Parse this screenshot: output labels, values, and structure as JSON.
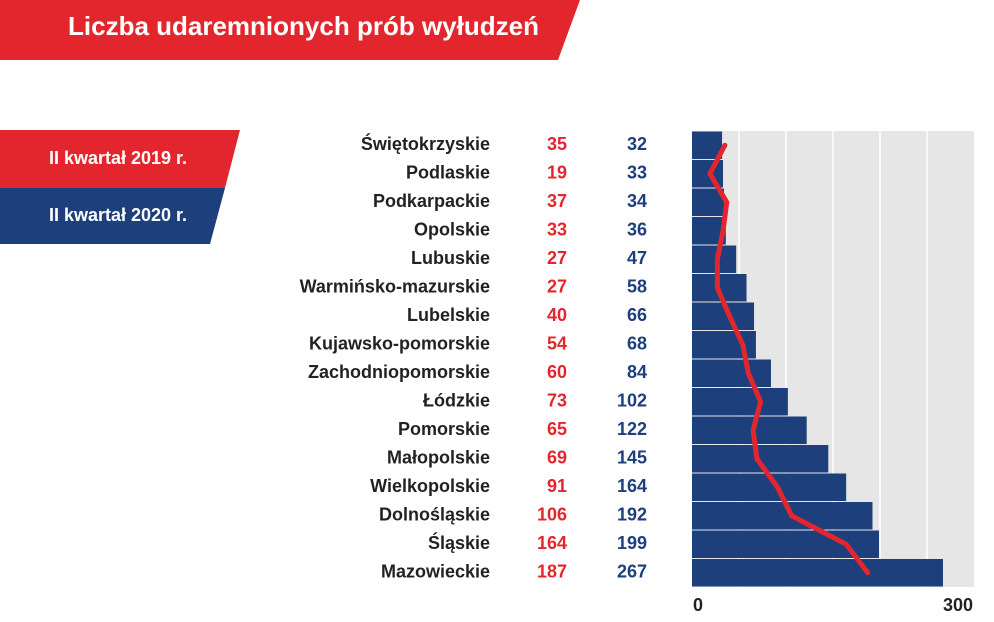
{
  "chart_data": {
    "type": "bar",
    "title": "Liczba udaremnionych prób wyłudzeń",
    "categories": [
      "Świętokrzyskie",
      "Podlaskie",
      "Podkarpackie",
      "Opolskie",
      "Lubuskie",
      "Warmińsko-mazurskie",
      "Lubelskie",
      "Kujawsko-pomorskie",
      "Zachodniopomorskie",
      "Łódzkie",
      "Pomorskie",
      "Małopolskie",
      "Wielkopolskie",
      "Dolnośląskie",
      "Śląskie",
      "Mazowieckie"
    ],
    "series": [
      {
        "name": "II kwartał 2019 r.",
        "color": "#e3262d",
        "type": "line",
        "values": [
          35,
          19,
          37,
          33,
          27,
          27,
          40,
          54,
          60,
          73,
          65,
          69,
          91,
          106,
          164,
          187
        ]
      },
      {
        "name": "II kwartał 2020 r.",
        "color": "#1d3f7c",
        "type": "bar",
        "values": [
          32,
          33,
          34,
          36,
          47,
          58,
          66,
          68,
          84,
          102,
          122,
          145,
          164,
          192,
          199,
          267
        ]
      }
    ],
    "xlim": [
      0,
      300
    ],
    "xticks": [
      0,
      300
    ],
    "xgrid": [
      50,
      100,
      150,
      200,
      250
    ]
  }
}
